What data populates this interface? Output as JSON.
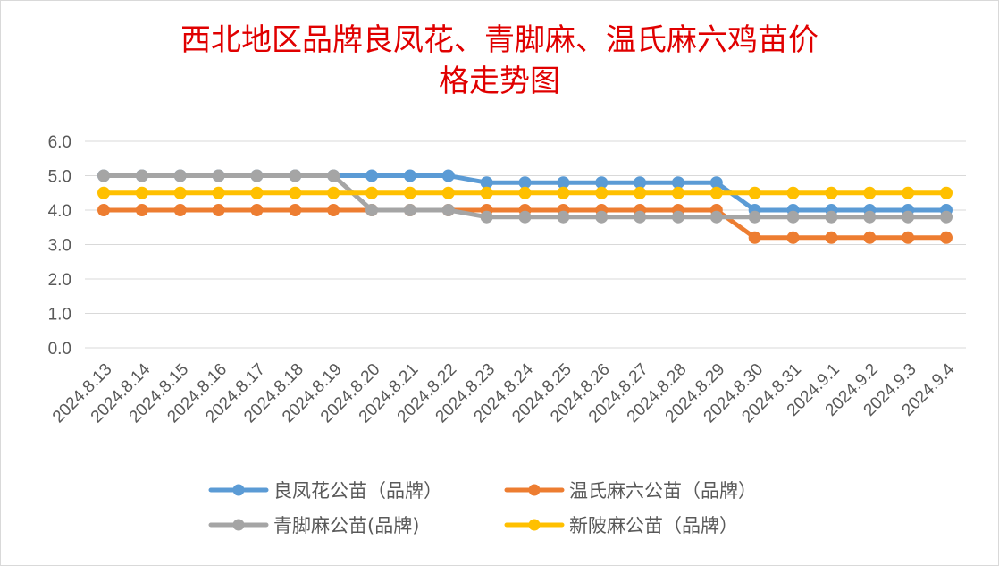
{
  "chart_data": {
    "type": "line",
    "title_line1": "西北地区品牌良凤花、青脚麻、温氏麻六鸡苗价",
    "title_line2": "格走势图",
    "xlabel": "",
    "ylabel": "",
    "ylim": [
      0,
      6
    ],
    "yticks": [
      "0.0",
      "1.0",
      "2.0",
      "3.0",
      "4.0",
      "5.0",
      "6.0"
    ],
    "grid": true,
    "legend_position": "bottom",
    "categories": [
      "2024.8.13",
      "2024.8.14",
      "2024.8.15",
      "2024.8.16",
      "2024.8.17",
      "2024.8.18",
      "2024.8.19",
      "2024.8.20",
      "2024.8.21",
      "2024.8.22",
      "2024.8.23",
      "2024.8.24",
      "2024.8.25",
      "2024.8.26",
      "2024.8.27",
      "2024.8.28",
      "2024.8.29",
      "2024.8.30",
      "2024.8.31",
      "2024.9.1",
      "2024.9.2",
      "2024.9.3",
      "2024.9.4"
    ],
    "series": [
      {
        "name": "良凤花公苗（品牌）",
        "color": "#5B9BD5",
        "values": [
          5.0,
          5.0,
          5.0,
          5.0,
          5.0,
          5.0,
          5.0,
          5.0,
          5.0,
          5.0,
          4.8,
          4.8,
          4.8,
          4.8,
          4.8,
          4.8,
          4.8,
          4.0,
          4.0,
          4.0,
          4.0,
          4.0,
          4.0
        ]
      },
      {
        "name": "温氏麻六公苗（品牌）",
        "color": "#ED7D31",
        "values": [
          4.0,
          4.0,
          4.0,
          4.0,
          4.0,
          4.0,
          4.0,
          4.0,
          4.0,
          4.0,
          4.0,
          4.0,
          4.0,
          4.0,
          4.0,
          4.0,
          4.0,
          3.2,
          3.2,
          3.2,
          3.2,
          3.2,
          3.2
        ]
      },
      {
        "name": "青脚麻公苗(品牌)",
        "color": "#A5A5A5",
        "values": [
          5.0,
          5.0,
          5.0,
          5.0,
          5.0,
          5.0,
          5.0,
          4.0,
          4.0,
          4.0,
          3.8,
          3.8,
          3.8,
          3.8,
          3.8,
          3.8,
          3.8,
          3.8,
          3.8,
          3.8,
          3.8,
          3.8,
          3.8
        ]
      },
      {
        "name": "新陂麻公苗（品牌）",
        "color": "#FFC000",
        "values": [
          4.5,
          4.5,
          4.5,
          4.5,
          4.5,
          4.5,
          4.5,
          4.5,
          4.5,
          4.5,
          4.5,
          4.5,
          4.5,
          4.5,
          4.5,
          4.5,
          4.5,
          4.5,
          4.5,
          4.5,
          4.5,
          4.5,
          4.5
        ]
      }
    ]
  }
}
